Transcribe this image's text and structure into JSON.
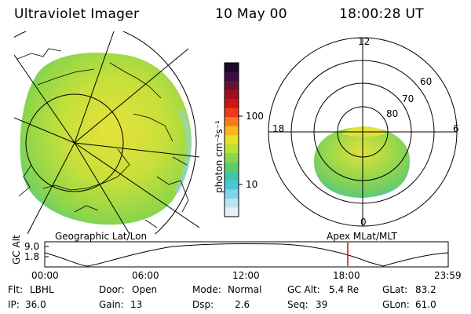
{
  "header": {
    "instrument": "Ultraviolet Imager",
    "date": "10 May 00",
    "time": "18:00:28 UT"
  },
  "colorbar": {
    "label": "photon cm⁻²s⁻¹",
    "scale": "log",
    "ticks": [
      "100",
      "10"
    ],
    "colors": [
      "#1a0b2e",
      "#3b0f44",
      "#6a1030",
      "#a0101a",
      "#d01515",
      "#ee3a1a",
      "#f77a1a",
      "#f9b51f",
      "#e8e02a",
      "#b9e03a",
      "#8cd44a",
      "#5fcb6a",
      "#3fc6a9",
      "#49c7d8",
      "#7fd4ea",
      "#b9e6f1",
      "#e5f1f5"
    ]
  },
  "left_panel": {
    "caption": "Geographic Lat/Lon"
  },
  "right_panel": {
    "caption": "Apex MLat/MLT",
    "lat_labels": [
      "80",
      "70",
      "60"
    ],
    "mlt_labels": {
      "top": "12",
      "right": "6",
      "bottom": "0",
      "left": "18"
    }
  },
  "timeline": {
    "ylabel": "GC Alt",
    "y_ticks": [
      "9.0",
      "1.8"
    ],
    "x_ticks": [
      "00:00",
      "06:00",
      "12:00",
      "18:00",
      "23:59"
    ],
    "marker_time": "18:00",
    "marker_color": "#e00000"
  },
  "info": {
    "filter_label": "Flt:",
    "filter_value": "LBHL",
    "ip_label": "IP:",
    "ip_value": "36.0",
    "door_label": "Door:",
    "door_value": "Open",
    "gain_label": "Gain:",
    "gain_value": "13",
    "mode_label": "Mode:",
    "mode_value": "Normal",
    "dsp_label": "Dsp:",
    "dsp_value": "2.6",
    "gcalt_label": "GC Alt:",
    "gcalt_value": "5.4 Re",
    "seq_label": "Seq:",
    "seq_value": "39",
    "glat_label": "GLat:",
    "glat_value": "83.2",
    "glon_label": "GLon:",
    "glon_value": "61.0"
  }
}
